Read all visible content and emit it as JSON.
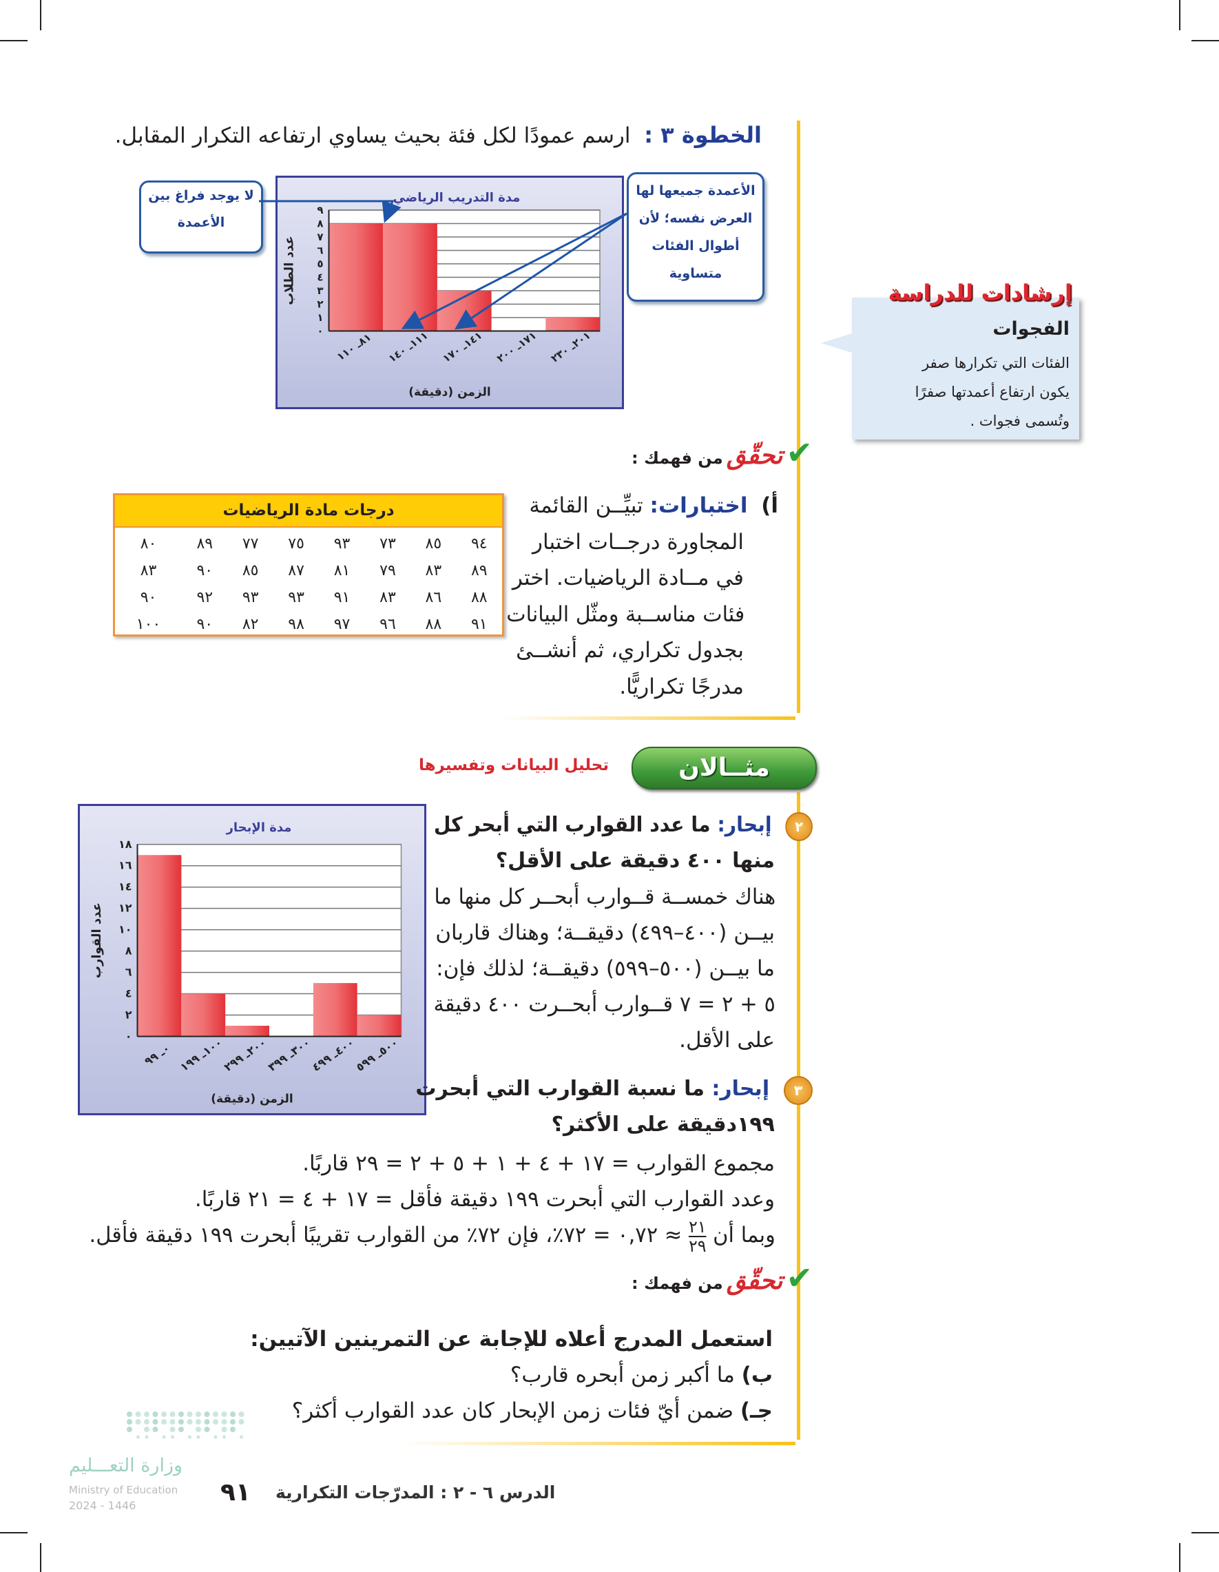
{
  "step3": {
    "label": "الخطوة ٣ :",
    "text": "ارسم عمودًا لكل فئة بحيث يساوي ارتفاعه التكرار المقابل."
  },
  "callouts": {
    "no_gap": [
      "لا يوجد فراغ بين",
      "الأعمدة"
    ],
    "same_width": [
      "الأعمدة جميعها لها",
      "العرض نفسه؛ لأن",
      "أطوال الفئات",
      "متساوية"
    ]
  },
  "study_tip": {
    "title": "إرشادات للدراسة",
    "heading": "الفجوات",
    "lines": [
      "الفئات التي تكرارها صفر",
      "يكون ارتفاع أعمدتها صفرًا",
      "وتُسمى فجوات ."
    ]
  },
  "check1": {
    "title": "تحقّق",
    "subtitle": "من فهمك :"
  },
  "exercise_a": {
    "marker": "أ)",
    "label": "اختبارات:",
    "lines": [
      "تبيِّــن القائمة",
      "المجاورة درجــات اختبار",
      "في مــادة الرياضيات. اختر",
      "فئات مناســبة ومثّل البيانات",
      "بجدول تكراري، ثم أنشــئ",
      "مدرجًا تكراريًّا."
    ]
  },
  "scores_table": {
    "title": "درجات مادة الرياضيات",
    "rows": [
      [
        "٩٤",
        "٨٥",
        "٧٣",
        "٩٣",
        "٧٥",
        "٧٧",
        "٨٩",
        "٨٠"
      ],
      [
        "٨٩",
        "٨٣",
        "٧٩",
        "٨١",
        "٨٧",
        "٨٥",
        "٩٠",
        "٨٣"
      ],
      [
        "٨٨",
        "٨٦",
        "٨٣",
        "٩١",
        "٩٣",
        "٩٣",
        "٩٢",
        "٩٠"
      ],
      [
        "٩١",
        "٨٨",
        "٩٦",
        "٩٧",
        "٩٨",
        "٨٢",
        "٩٠",
        "١٠٠"
      ]
    ],
    "header_color": "#ffcc05",
    "border_color": "#f0953a"
  },
  "example_banner": {
    "label": "مثــالان",
    "subtitle": "تحليل البيانات وتفسيرها",
    "color": "#3f9a3a"
  },
  "q2": {
    "number": "٢",
    "label": "إبحار:",
    "question": [
      "ما عدد القوارب التي أبحر كل",
      "منها ٤٠٠ دقيقة على الأقل؟"
    ],
    "answer": [
      "هناك خمســة قــوارب أبحــر كل منها ما",
      "بيــن (٤٠٠–٤٩٩) دقيقــة؛ وهناك قاربان",
      "ما بيــن (٥٠٠–٥٩٩) دقيقــة؛ لذلك فإن:",
      "٥ + ٢ = ٧ قــوارب أبحــرت ٤٠٠ دقيقة",
      "على الأقل."
    ]
  },
  "q3": {
    "number": "٣",
    "label": "إبحار:",
    "question": [
      "ما نسبة القوارب التي أبحرت",
      "١٩٩دقيقة على الأكثر؟"
    ],
    "answer": [
      "مجموع القوارب = ١٧ + ٤ + ١ + ٥ + ٢ = ٢٩ قاربًا.",
      "وعدد القوارب التي أبحرت ١٩٩ دقيقة فأقل = ١٧ + ٤ = ٢١ قاربًا."
    ],
    "last_line": {
      "before": "وبما أن",
      "numerator": "٢١",
      "denominator": "٢٩",
      "after": "≈ ٠,٧٢ = ٧٢٪، فإن ٧٢٪ من القوارب تقريبًا أبحرت ١٩٩ دقيقة فأقل."
    }
  },
  "check2": {
    "title": "تحقّق",
    "subtitle": "من فهمك :",
    "intro": "استعمل المدرج أعلاه للإجابة عن التمرينين الآتيين:",
    "items": [
      {
        "marker": "ب)",
        "text": "ما أكبر زمن أبحره قارب؟"
      },
      {
        "marker": "جـ)",
        "text": "ضمن أيّ فئات زمن الإبحار كان عدد القوارب أكثر؟"
      }
    ]
  },
  "footer": {
    "lesson": "الدرس ٦ - ٢ : المدرّجات التكرارية",
    "page_number": "٩١",
    "ministry_ar": "وزارة التعـــليم",
    "ministry_en": "Ministry of Education",
    "year": "2024 - 1446"
  },
  "chart_data": [
    {
      "type": "bar",
      "title": "مدة التدريب الرياضي",
      "xlabel": "الزمن (دقيقة)",
      "ylabel": "عدد الطلاب",
      "categories": [
        "٨١ـ ١١٠",
        "١١١ـ ١٤٠",
        "١٤١ـ ١٧٠",
        "١٧١ـ ٢٠٠",
        "٢٠١ـ ٢٣٠"
      ],
      "values": [
        8,
        8,
        3,
        0,
        1
      ],
      "ylim": [
        0,
        9
      ],
      "yticks": [
        "٠",
        "١",
        "٢",
        "٣",
        "٤",
        "٥",
        "٦",
        "٧",
        "٨",
        "٩"
      ],
      "grid": true,
      "bar_color": "#e3333a"
    },
    {
      "type": "bar",
      "title": "مدة الإبحار",
      "xlabel": "الزمن (دقيقة)",
      "ylabel": "عدد القوارب",
      "categories": [
        "٠ـ ٩٩",
        "١٠٠ـ ١٩٩",
        "٢٠٠ـ ٢٩٩",
        "٣٠٠ـ ٣٩٩",
        "٤٠٠ـ ٤٩٩",
        "٥٠٠ـ ٥٩٩"
      ],
      "values": [
        17,
        4,
        1,
        0,
        5,
        2
      ],
      "ylim": [
        0,
        18
      ],
      "yticks": [
        "٠",
        "٢",
        "٤",
        "٦",
        "٨",
        "١٠",
        "١٢",
        "١٤",
        "١٦",
        "١٨"
      ],
      "grid": true,
      "bar_color": "#e3333a"
    }
  ]
}
